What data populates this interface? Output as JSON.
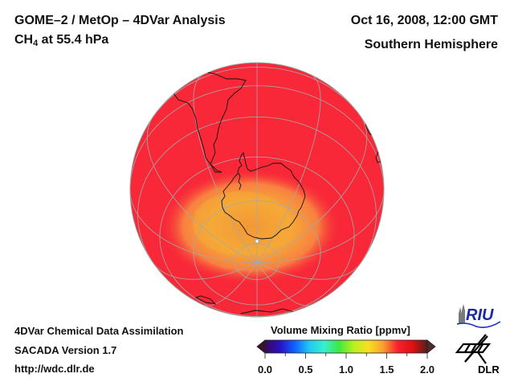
{
  "header": {
    "title": "GOME–2 / MetOp – 4DVar Analysis",
    "species_main": "CH",
    "species_sub": "4",
    "species_rest": " at 55.4 hPa",
    "datetime": "Oct 16, 2008, 12:00 GMT",
    "region": "Southern Hemisphere"
  },
  "footer": {
    "line1": "4DVar Chemical Data Assimilation",
    "line2": "SACADA Version 1.7",
    "line3": "http://wdc.dlr.de"
  },
  "colorbar": {
    "title": "Volume Mixing Ratio [ppmv]",
    "min": 0.0,
    "max": 2.0,
    "tick_labels": [
      "0.0",
      "0.5",
      "1.0",
      "1.5",
      "2.0"
    ],
    "minor_ticks_per_label": 2,
    "colors": [
      "#3a0a5a",
      "#2a10c0",
      "#1060ff",
      "#20c8f0",
      "#38f0d0",
      "#40e840",
      "#b8f020",
      "#f8e020",
      "#f8a030",
      "#f82030",
      "#e01010",
      "#502020"
    ]
  },
  "map": {
    "projection": "orthographic",
    "hemisphere": "south",
    "background_value_color": "#f82838",
    "anomaly_colors": [
      "#f86040",
      "#f8a038",
      "#f4b030"
    ],
    "coastline_color": "#111111",
    "graticule_color": "#a0a0a0"
  },
  "logos": {
    "riu": "RIU",
    "dlr": "DLR"
  }
}
